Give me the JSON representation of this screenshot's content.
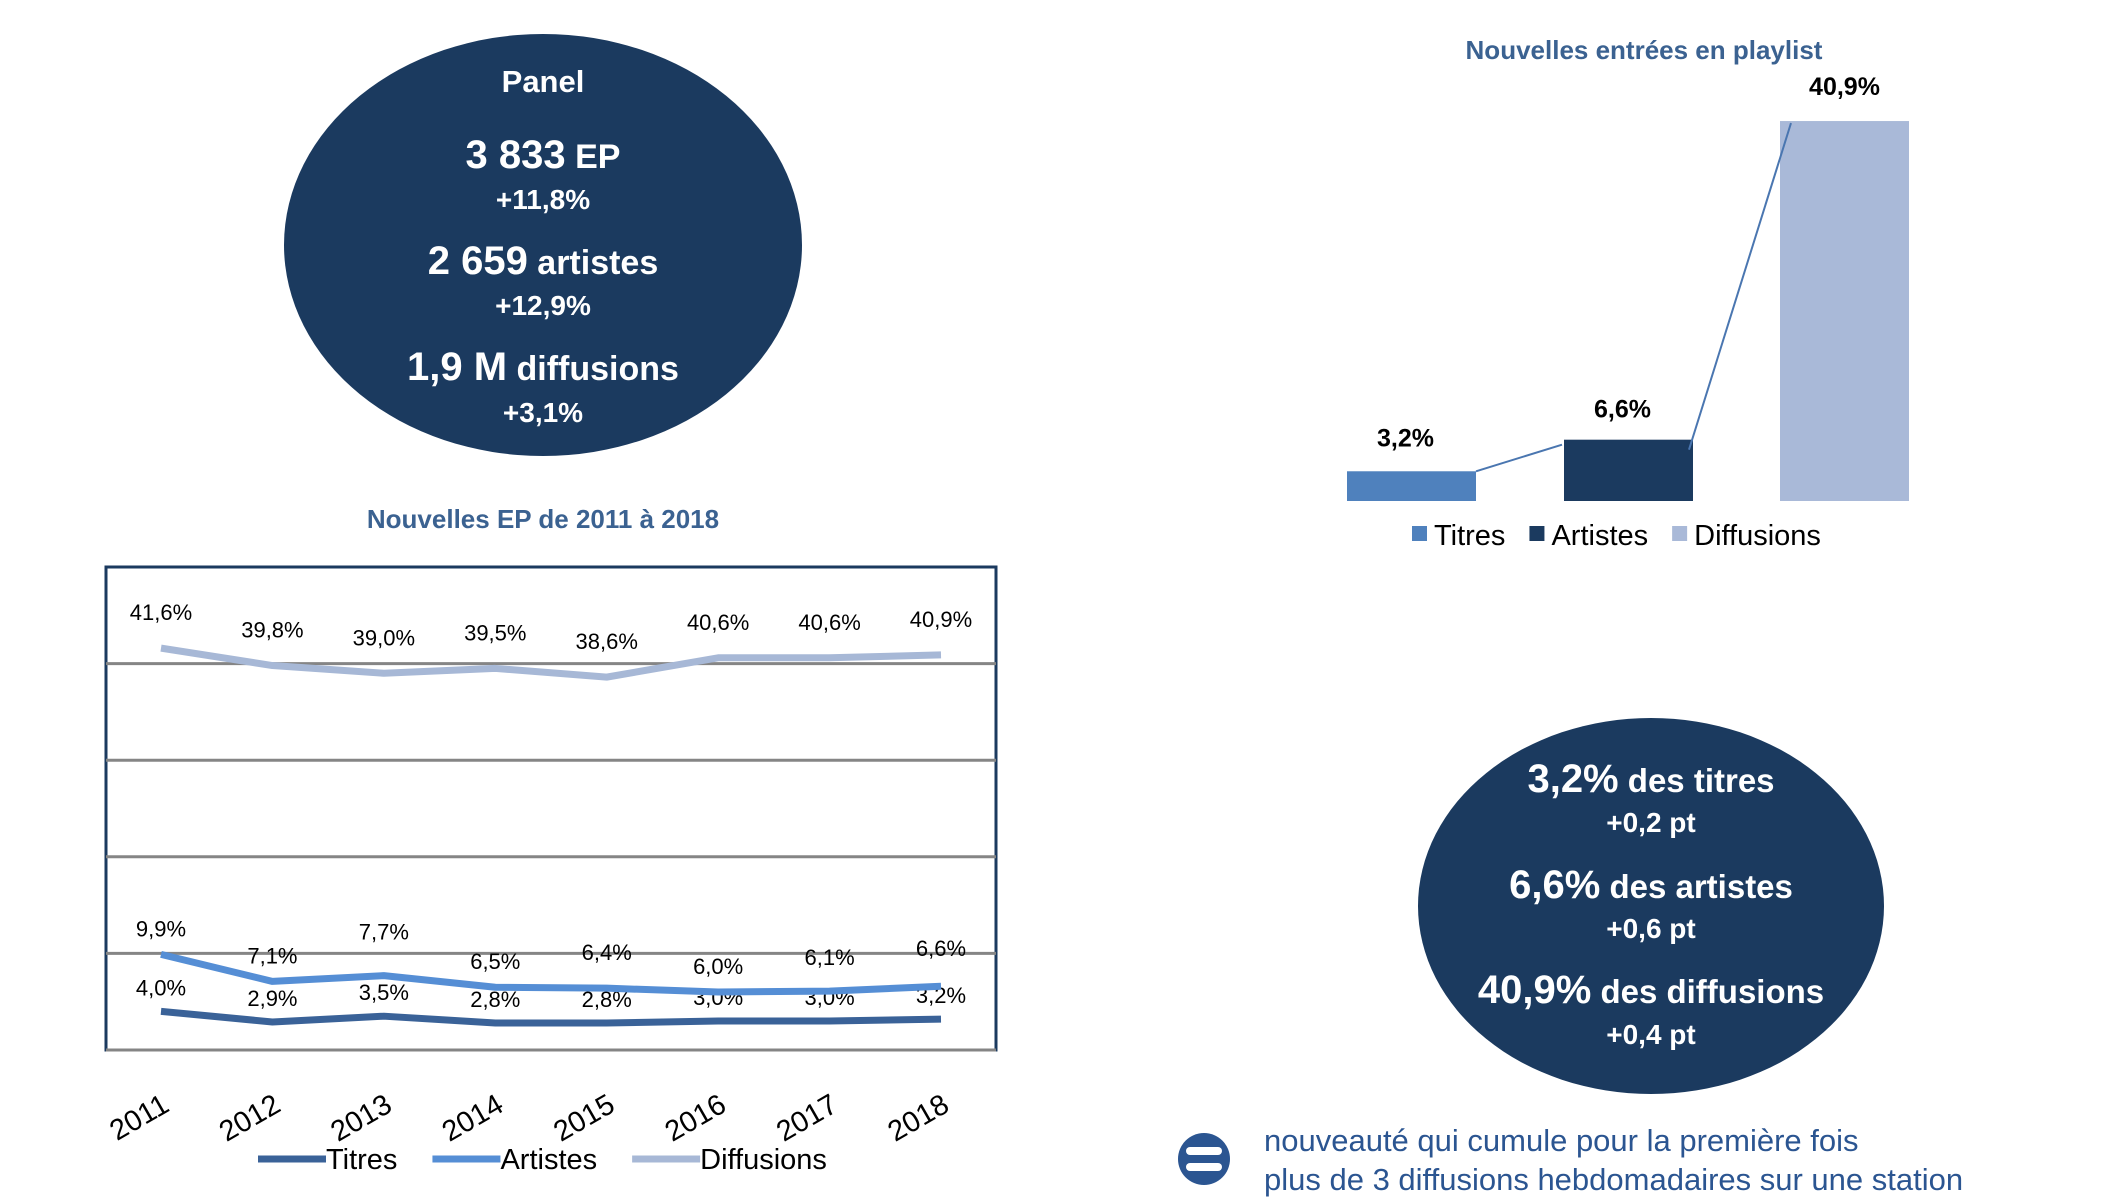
{
  "panel": {
    "title": "Panel",
    "rows": [
      {
        "value": "3 833",
        "unit": " EP",
        "change": "+11,8%"
      },
      {
        "value": "2 659",
        "unit": " artistes",
        "change": "+12,9%"
      },
      {
        "value": "1,9 M",
        "unit": " diffusions",
        "change": "+3,1%"
      }
    ]
  },
  "summary": {
    "rows": [
      {
        "value": "3,2%",
        "unit": " des titres",
        "change": "+0,2 pt"
      },
      {
        "value": "6,6%",
        "unit": " des artistes",
        "change": "+0,6 pt"
      },
      {
        "value": "40,9%",
        "unit": " des diffusions",
        "change": "+0,4 pt"
      }
    ]
  },
  "note": {
    "icon": "equals-circle-icon",
    "line1": "nouveauté qui cumule pour la première fois",
    "line2": "plus de 3 diffusions hebdomadaires sur une station"
  },
  "colors": {
    "dark": "#1b3a5f",
    "titres": "#3a6298",
    "artistes": "#558ed5",
    "diffusions": "#a7b8d6",
    "bar_titres": "#4f81bd",
    "bar_artistes": "#1b3a5f",
    "bar_diffusions": "#a9b9d8",
    "note": "#2b5591"
  },
  "chart_data": [
    {
      "type": "line",
      "title": "Nouvelles EP de 2011 à 2018",
      "categories": [
        "2011",
        "2012",
        "2013",
        "2014",
        "2015",
        "2016",
        "2017",
        "2018"
      ],
      "ylim": [
        0,
        50
      ],
      "grid": true,
      "legend": "bottom",
      "series": [
        {
          "name": "Titres",
          "values": [
            4.0,
            2.9,
            3.5,
            2.8,
            2.8,
            3.0,
            3.0,
            3.2
          ],
          "labels": [
            "4,0%",
            "2,9%",
            "3,5%",
            "2,8%",
            "2,8%",
            "3,0%",
            "3,0%",
            "3,2%"
          ]
        },
        {
          "name": "Artistes",
          "values": [
            9.9,
            7.1,
            7.7,
            6.5,
            6.4,
            6.0,
            6.1,
            6.6
          ],
          "labels": [
            "9,9%",
            "7,1%",
            "7,7%",
            "6,5%",
            "6,4%",
            "6,0%",
            "6,1%",
            "6,6%"
          ]
        },
        {
          "name": "Diffusions",
          "values": [
            41.6,
            39.8,
            39.0,
            39.5,
            38.6,
            40.6,
            40.6,
            40.9
          ],
          "labels": [
            "41,6%",
            "39,8%",
            "39,0%",
            "39,5%",
            "38,6%",
            "40,6%",
            "40,6%",
            "40,9%"
          ]
        }
      ]
    },
    {
      "type": "bar",
      "title": "Nouvelles entrées en playlist",
      "categories": [
        "Titres",
        "Artistes",
        "Diffusions"
      ],
      "values": [
        3.2,
        6.6,
        40.9
      ],
      "labels": [
        "3,2%",
        "6,6%",
        "40,9%"
      ],
      "legend": "bottom"
    }
  ]
}
